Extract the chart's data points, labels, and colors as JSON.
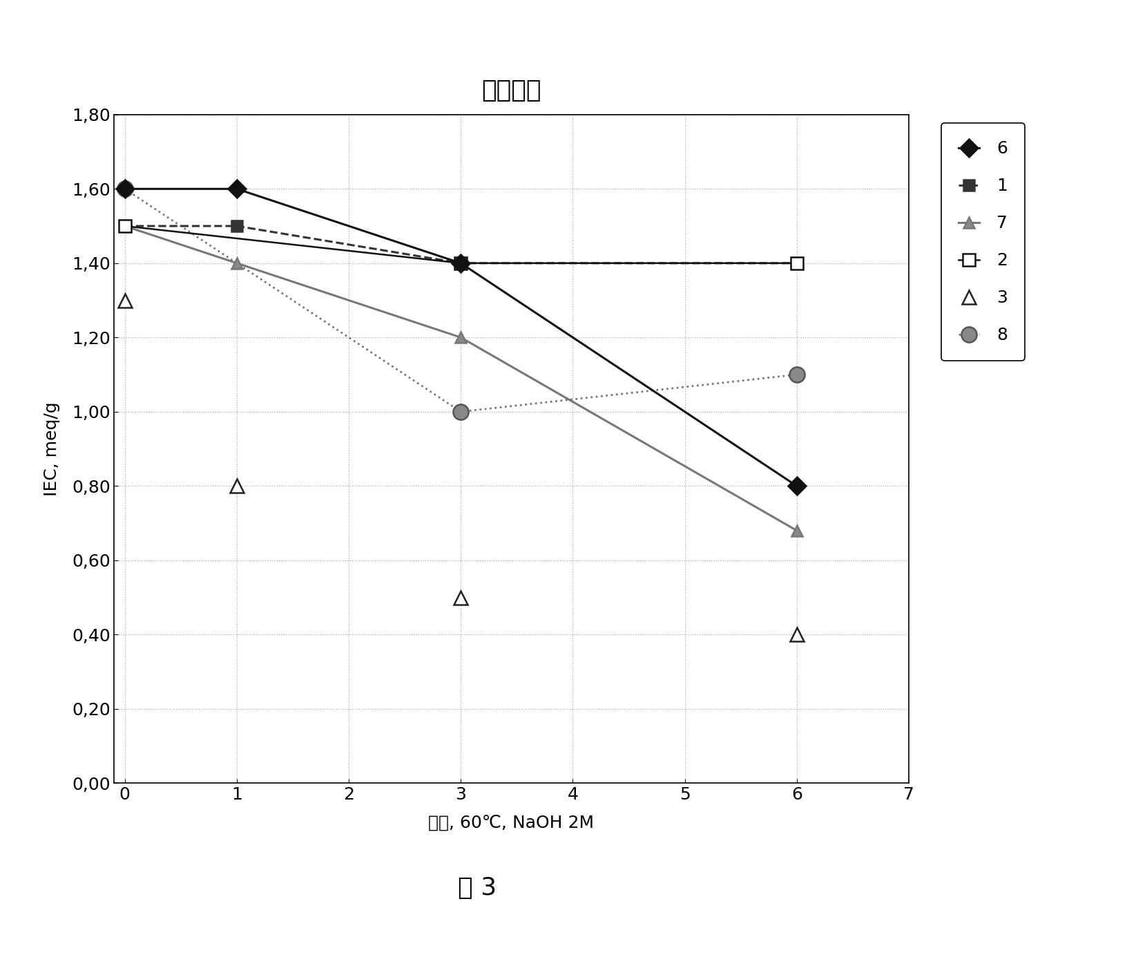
{
  "title": "碱稳定性",
  "xlabel": "天数, 60℃, NaOH 2M",
  "ylabel": "IEC, meq/g",
  "figcaption": "图 3",
  "xlim": [
    -0.1,
    7
  ],
  "ylim": [
    0.0,
    1.8
  ],
  "xticks": [
    0,
    1,
    2,
    3,
    4,
    5,
    6,
    7
  ],
  "yticks": [
    0.0,
    0.2,
    0.4,
    0.6,
    0.8,
    1.0,
    1.2,
    1.4,
    1.6,
    1.8
  ],
  "series": [
    {
      "label": "6",
      "x": [
        0,
        1,
        3,
        6
      ],
      "y": [
        1.6,
        1.6,
        1.4,
        0.8
      ],
      "color": "#111111",
      "linestyle": "solid",
      "linewidth": 2.2,
      "marker": "D",
      "markersize": 13,
      "markerfacecolor": "#111111",
      "markeredgecolor": "#111111",
      "zorder": 5
    },
    {
      "label": "1",
      "x": [
        0,
        1,
        3,
        6
      ],
      "y": [
        1.5,
        1.5,
        1.4,
        1.4
      ],
      "color": "#333333",
      "linestyle": "dashed",
      "linewidth": 2.2,
      "marker": "s",
      "markersize": 11,
      "markerfacecolor": "#333333",
      "markeredgecolor": "#333333",
      "zorder": 4
    },
    {
      "label": "7",
      "x": [
        0,
        1,
        3,
        6
      ],
      "y": [
        1.5,
        1.4,
        1.2,
        0.68
      ],
      "color": "#777777",
      "linestyle": "solid",
      "linewidth": 2.2,
      "marker": "^",
      "markersize": 12,
      "markerfacecolor": "#888888",
      "markeredgecolor": "#777777",
      "zorder": 3
    },
    {
      "label": "2",
      "x": [
        0,
        3,
        6
      ],
      "y": [
        1.5,
        1.4,
        1.4
      ],
      "color": "#111111",
      "linestyle": "solid",
      "linewidth": 1.8,
      "marker": "s",
      "markersize": 13,
      "markerfacecolor": "white",
      "markeredgecolor": "#111111",
      "zorder": 4
    },
    {
      "label": "3",
      "x": [
        0,
        1,
        3,
        6
      ],
      "y": [
        1.3,
        0.8,
        0.5,
        0.4
      ],
      "color": "#222222",
      "linestyle": "none",
      "linewidth": 1.5,
      "marker": "^",
      "markersize": 14,
      "markerfacecolor": "white",
      "markeredgecolor": "#222222",
      "zorder": 3
    },
    {
      "label": "8",
      "x": [
        0,
        3,
        6
      ],
      "y": [
        1.6,
        1.0,
        1.1
      ],
      "color": "#777777",
      "linestyle": "dotted",
      "linewidth": 2.0,
      "marker": "o",
      "markersize": 16,
      "markerfacecolor": "#888888",
      "markeredgecolor": "#555555",
      "zorder": 2
    }
  ],
  "background_color": "#ffffff",
  "grid_major_color": "#aaaaaa",
  "grid_minor_color": "#cccccc",
  "title_fontsize": 26,
  "label_fontsize": 18,
  "tick_fontsize": 18,
  "legend_fontsize": 18,
  "caption_fontsize": 26
}
